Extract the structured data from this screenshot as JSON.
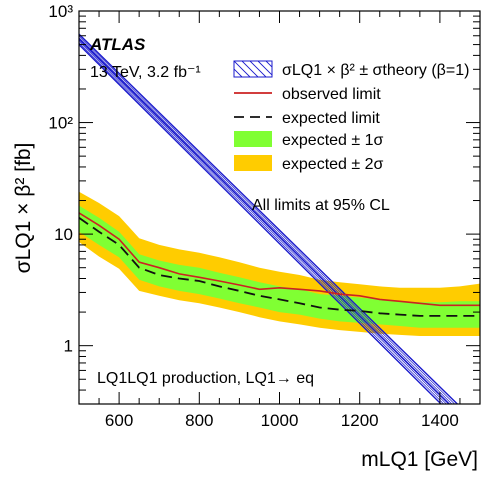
{
  "chart_data": {
    "type": "line",
    "xlim": [
      500,
      1500
    ],
    "ylim_log": [
      0.3,
      1000
    ],
    "y_scale": "log",
    "x_ticks": [
      600,
      800,
      1000,
      1200,
      1400
    ],
    "y_ticks": [
      {
        "value": 1,
        "label": "1"
      },
      {
        "value": 10,
        "label": "10"
      },
      {
        "value": 100,
        "label": "10²"
      },
      {
        "value": 1000,
        "label": "10³"
      }
    ],
    "ylabel": "σLQ1 × β² [fb]",
    "xlabel": "mLQ1 [GeV]",
    "atlas_label": "ATLAS",
    "energy_label": "13 TeV, 3.2 fb⁻¹",
    "cl_note": "All limits at 95% CL",
    "production_note": "LQ1LQ1 production, LQ1→ eq",
    "legend_position": "top-right",
    "legend": [
      {
        "key": "theory",
        "label": "σLQ1 × β² ± σtheory (β=1)"
      },
      {
        "key": "observed",
        "label": "observed limit"
      },
      {
        "key": "expected",
        "label": "expected limit"
      },
      {
        "key": "band1",
        "label": "expected ± 1σ"
      },
      {
        "key": "band2",
        "label": "expected ± 2σ"
      }
    ],
    "colors": {
      "theory": "#1a1acc",
      "observed": "#cc2222",
      "expected": "#111111",
      "band1": "#80ff33",
      "band2": "#ffcc00"
    },
    "theory": {
      "x": [
        500,
        1500
      ],
      "central": [
        560,
        0.16
      ],
      "upper": [
        620,
        0.19
      ],
      "lower": [
        500,
        0.135
      ]
    },
    "observed": {
      "x": [
        500,
        550,
        600,
        650,
        700,
        750,
        800,
        850,
        900,
        950,
        1000,
        1050,
        1100,
        1150,
        1200,
        1250,
        1300,
        1350,
        1400,
        1450,
        1500
      ],
      "y": [
        15.5,
        12.0,
        9.0,
        5.6,
        5.0,
        4.4,
        4.1,
        3.8,
        3.5,
        3.2,
        3.3,
        3.2,
        3.1,
        2.9,
        2.8,
        2.6,
        2.5,
        2.4,
        2.3,
        2.3,
        2.3
      ]
    },
    "expected": {
      "x": [
        500,
        550,
        600,
        650,
        700,
        750,
        800,
        850,
        900,
        950,
        1000,
        1050,
        1100,
        1150,
        1200,
        1250,
        1300,
        1350,
        1400,
        1450,
        1500
      ],
      "y": [
        14.0,
        10.5,
        8.0,
        5.0,
        4.3,
        4.0,
        3.8,
        3.4,
        3.1,
        2.8,
        2.6,
        2.4,
        2.2,
        2.1,
        2.05,
        1.95,
        1.9,
        1.85,
        1.85,
        1.85,
        1.85
      ]
    },
    "band1": {
      "x": [
        500,
        550,
        600,
        650,
        700,
        750,
        800,
        850,
        900,
        950,
        1000,
        1050,
        1100,
        1150,
        1200,
        1250,
        1300,
        1350,
        1400,
        1450,
        1500
      ],
      "lower": [
        10.5,
        8.0,
        6.2,
        3.9,
        3.4,
        3.1,
        2.9,
        2.65,
        2.4,
        2.2,
        2.0,
        1.9,
        1.75,
        1.65,
        1.6,
        1.55,
        1.5,
        1.45,
        1.45,
        1.45,
        1.45
      ],
      "upper": [
        18.0,
        14.0,
        10.5,
        6.6,
        5.8,
        5.3,
        5.0,
        4.5,
        4.1,
        3.7,
        3.4,
        3.2,
        2.9,
        2.8,
        2.7,
        2.6,
        2.5,
        2.45,
        2.45,
        2.5,
        2.5
      ]
    },
    "band2": {
      "x": [
        500,
        550,
        600,
        650,
        700,
        750,
        800,
        850,
        900,
        950,
        1000,
        1050,
        1100,
        1150,
        1200,
        1250,
        1300,
        1350,
        1400,
        1450,
        1500
      ],
      "lower": [
        8.5,
        6.3,
        4.9,
        3.1,
        2.8,
        2.55,
        2.4,
        2.2,
        2.0,
        1.8,
        1.65,
        1.55,
        1.45,
        1.38,
        1.33,
        1.28,
        1.25,
        1.22,
        1.22,
        1.22,
        1.22
      ],
      "upper": [
        24.0,
        19.0,
        14.5,
        9.2,
        8.0,
        7.3,
        6.8,
        6.2,
        5.6,
        5.0,
        4.6,
        4.3,
        3.9,
        3.7,
        3.55,
        3.4,
        3.3,
        3.3,
        3.3,
        3.4,
        3.6
      ]
    }
  }
}
